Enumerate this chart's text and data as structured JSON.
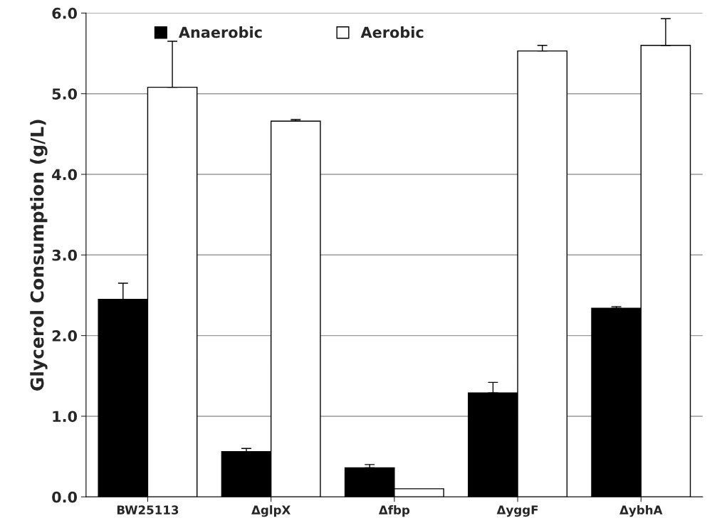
{
  "chart_data": {
    "type": "bar",
    "ylabel": "Glycerol Consumption (g/L)",
    "categories": [
      "BW25113",
      "ΔglpX",
      "Δfbp",
      "ΔyggF",
      "ΔybhA"
    ],
    "series": [
      {
        "name": "Anaerobic",
        "color": "#000000",
        "values": [
          2.45,
          0.56,
          0.36,
          1.29,
          2.34
        ],
        "errors": [
          [
            2.45,
            2.65
          ],
          [
            0.56,
            0.6
          ],
          [
            0.36,
            0.4
          ],
          [
            1.29,
            1.42
          ],
          [
            2.34,
            2.36
          ]
        ]
      },
      {
        "name": "Aerobic",
        "color": "#ffffff",
        "values": [
          5.08,
          4.66,
          0.1,
          5.53,
          5.6
        ],
        "errors": [
          [
            5.08,
            5.65
          ],
          [
            4.66,
            4.68
          ],
          null,
          [
            5.53,
            5.6
          ],
          [
            5.6,
            5.93
          ]
        ]
      }
    ],
    "ylim": [
      0,
      6
    ],
    "yticks": [
      {
        "value": 0,
        "label": "0.0"
      },
      {
        "value": 1,
        "label": "1.0"
      },
      {
        "value": 2,
        "label": "2.0"
      },
      {
        "value": 3,
        "label": "3.0"
      },
      {
        "value": 4,
        "label": "4.0"
      },
      {
        "value": 5,
        "label": "5.0"
      },
      {
        "value": 6,
        "label": "6.0"
      }
    ],
    "grid": "y",
    "legend": "top"
  }
}
